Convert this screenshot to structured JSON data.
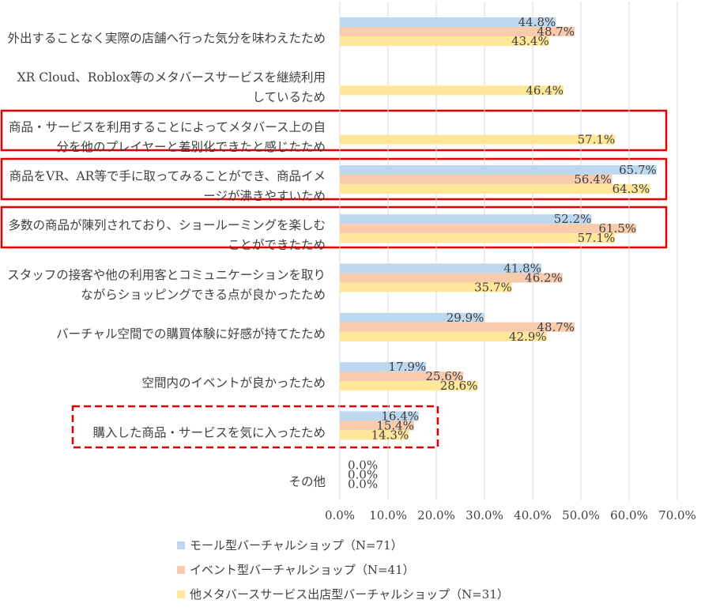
{
  "chart_data": {
    "type": "bar",
    "orientation": "horizontal",
    "categories": [
      "外出することなく実際の店舗へ行った気分を味わえたため",
      "XR Cloud、Roblox等のメタバースサービスを継続利用しているため",
      "商品・サービスを利用することによってメタバース上の自分を他のプレイヤーと差別化できたと感じたため",
      "商品をVR、AR等で手に取ってみることができ、商品イメージが沸きやすいため",
      "多数の商品が陳列されており、ショールーミングを楽しむことができたため",
      "スタッフの接客や他の利用客とコミュニケーションを取りながらショッピングできる点が良かったため",
      "バーチャル空間での購買体験に好感が持てたため",
      "空間内のイベントが良かったため",
      "購入した商品・サービスを気に入ったため",
      "その他"
    ],
    "series": [
      {
        "name": "モール型バーチャルショップ（N=71）",
        "color": "#bdd7ee",
        "values": [
          44.8,
          null,
          null,
          65.7,
          52.2,
          41.8,
          29.9,
          17.9,
          16.4,
          0.0
        ],
        "value_labels": [
          "44.8%",
          null,
          null,
          "65.7%",
          "52.2%",
          "41.8%",
          "29.9%",
          "17.9%",
          "16.4%",
          "0.0%"
        ]
      },
      {
        "name": "イベント型バーチャルショップ（N=41）",
        "color": "#f8cbad",
        "values": [
          48.7,
          null,
          null,
          56.4,
          61.5,
          46.2,
          48.7,
          25.6,
          15.4,
          0.0
        ],
        "value_labels": [
          "48.7%",
          null,
          null,
          "56.4%",
          "61.5%",
          "46.2%",
          "48.7%",
          "25.6%",
          "15.4%",
          "0.0%"
        ]
      },
      {
        "name": "他メタバースサービス出店型バーチャルショップ（N=31）",
        "color": "#ffe699",
        "values": [
          43.4,
          46.4,
          57.1,
          64.3,
          57.1,
          35.7,
          42.9,
          28.6,
          14.3,
          0.0
        ],
        "value_labels": [
          "43.4%",
          "46.4%",
          "57.1%",
          "64.3%",
          "57.1%",
          "35.7%",
          "42.9%",
          "28.6%",
          "14.3%",
          "0.0%"
        ]
      }
    ],
    "xlim": [
      0,
      70
    ],
    "xticks": [
      {
        "value": 0,
        "label": "0.0%"
      },
      {
        "value": 10,
        "label": "10.0%"
      },
      {
        "value": 20,
        "label": "20.0%"
      },
      {
        "value": 30,
        "label": "30.0%"
      },
      {
        "value": 40,
        "label": "40.0%"
      },
      {
        "value": 50,
        "label": "50.0%"
      },
      {
        "value": 60,
        "label": "60.0%"
      },
      {
        "value": 70,
        "label": "70.0%"
      }
    ],
    "grid": true,
    "legend": "bottom"
  }
}
